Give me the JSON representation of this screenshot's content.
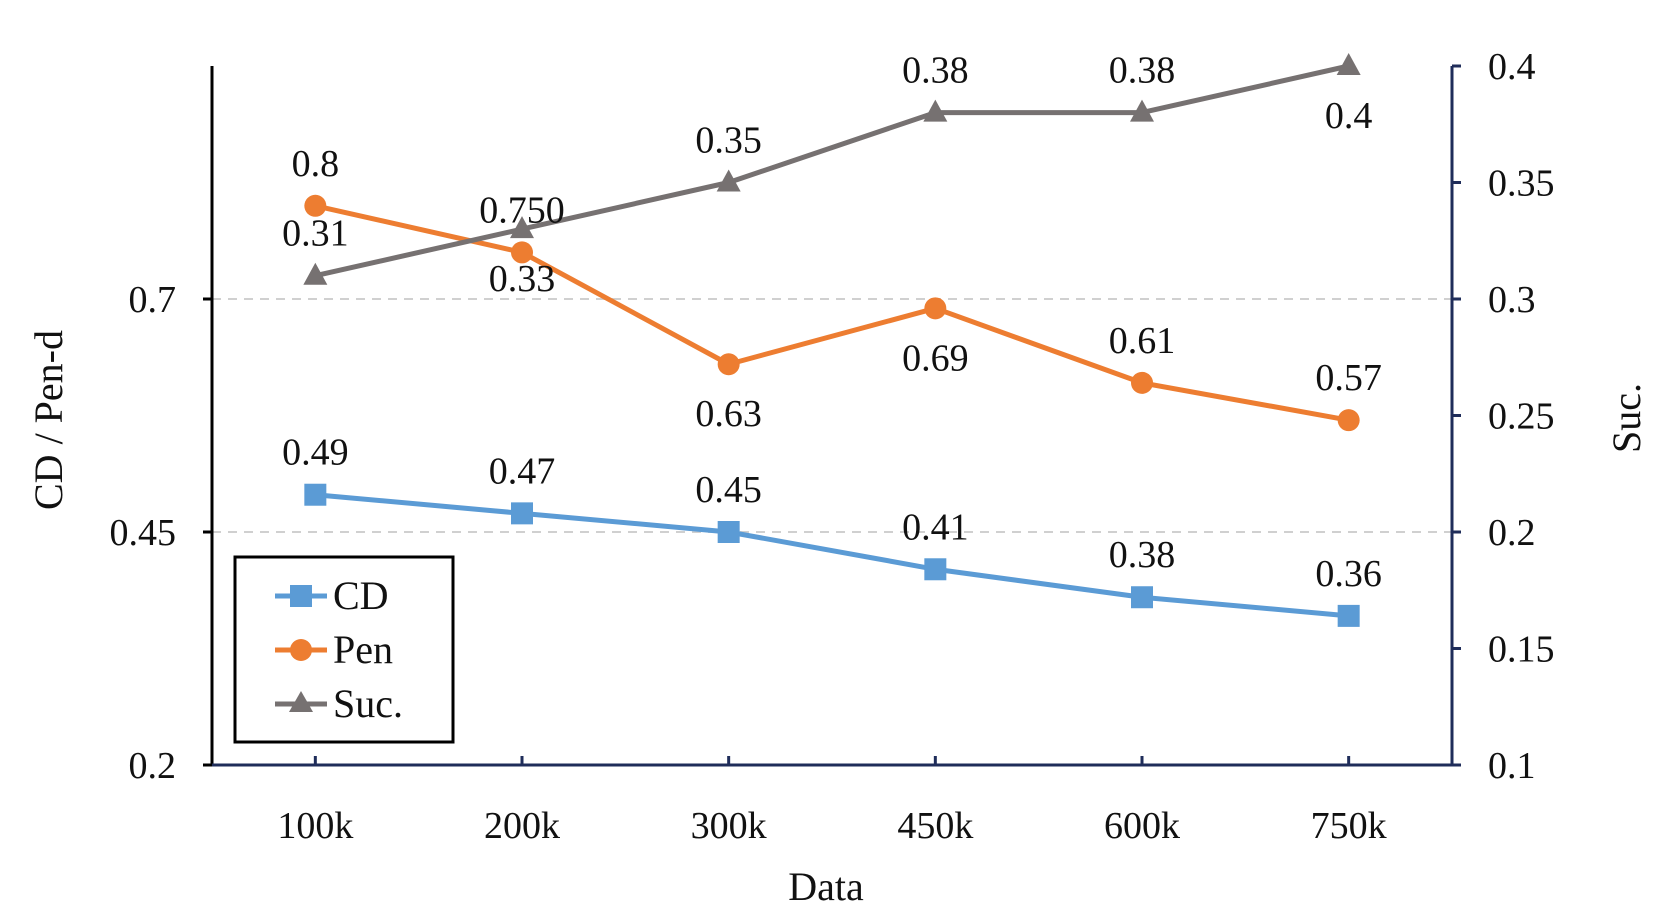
{
  "chart_data": {
    "type": "line",
    "title": "",
    "xlabel": "Data",
    "ylabel_left": "CD / Pen-d",
    "ylabel_right": "Suc.",
    "categories": [
      "100k",
      "200k",
      "300k",
      "450k",
      "600k",
      "750k"
    ],
    "y_left": {
      "range": [
        0.2,
        0.95
      ],
      "ticks": [
        0.2,
        0.45,
        0.7
      ],
      "tick_labels": [
        "0.2",
        "0.45",
        "0.7"
      ]
    },
    "y_right": {
      "range": [
        0.1,
        0.4
      ],
      "ticks": [
        0.1,
        0.15,
        0.2,
        0.25,
        0.3,
        0.35,
        0.4
      ],
      "tick_labels": [
        "0.1",
        "0.15",
        "0.2",
        "0.25",
        "0.3",
        "0.35",
        "0.4"
      ]
    },
    "gridlines_at_left": [
      0.45,
      0.7
    ],
    "legend_position": "bottom-left",
    "series": [
      {
        "name": "CD",
        "axis": "left",
        "color": "#5b9bd5",
        "marker": "square",
        "values": [
          0.49,
          0.47,
          0.45,
          0.41,
          0.38,
          0.36
        ],
        "labels": [
          "0.49",
          "0.47",
          "0.45",
          "0.41",
          "0.38",
          "0.36"
        ],
        "label_pos": [
          "above",
          "above",
          "above",
          "above",
          "above",
          "above"
        ]
      },
      {
        "name": "Pen",
        "axis": "left",
        "color": "#ed7d31",
        "marker": "circle",
        "values": [
          0.8,
          0.75,
          0.63,
          0.69,
          0.61,
          0.57
        ],
        "labels": [
          "0.8",
          "0.750",
          "0.63",
          "0.69",
          "0.61",
          "0.57"
        ],
        "label_pos": [
          "above",
          "above",
          "below",
          "below",
          "above",
          "above"
        ]
      },
      {
        "name": "Suc.",
        "axis": "right",
        "color": "#767171",
        "marker": "triangle",
        "values": [
          0.31,
          0.33,
          0.35,
          0.38,
          0.38,
          0.4
        ],
        "labels": [
          "0.31",
          "0.33",
          "0.35",
          "0.38",
          "0.38",
          "0.4"
        ],
        "label_pos": [
          "above",
          "below",
          "above",
          "above",
          "above",
          "below"
        ]
      }
    ]
  }
}
